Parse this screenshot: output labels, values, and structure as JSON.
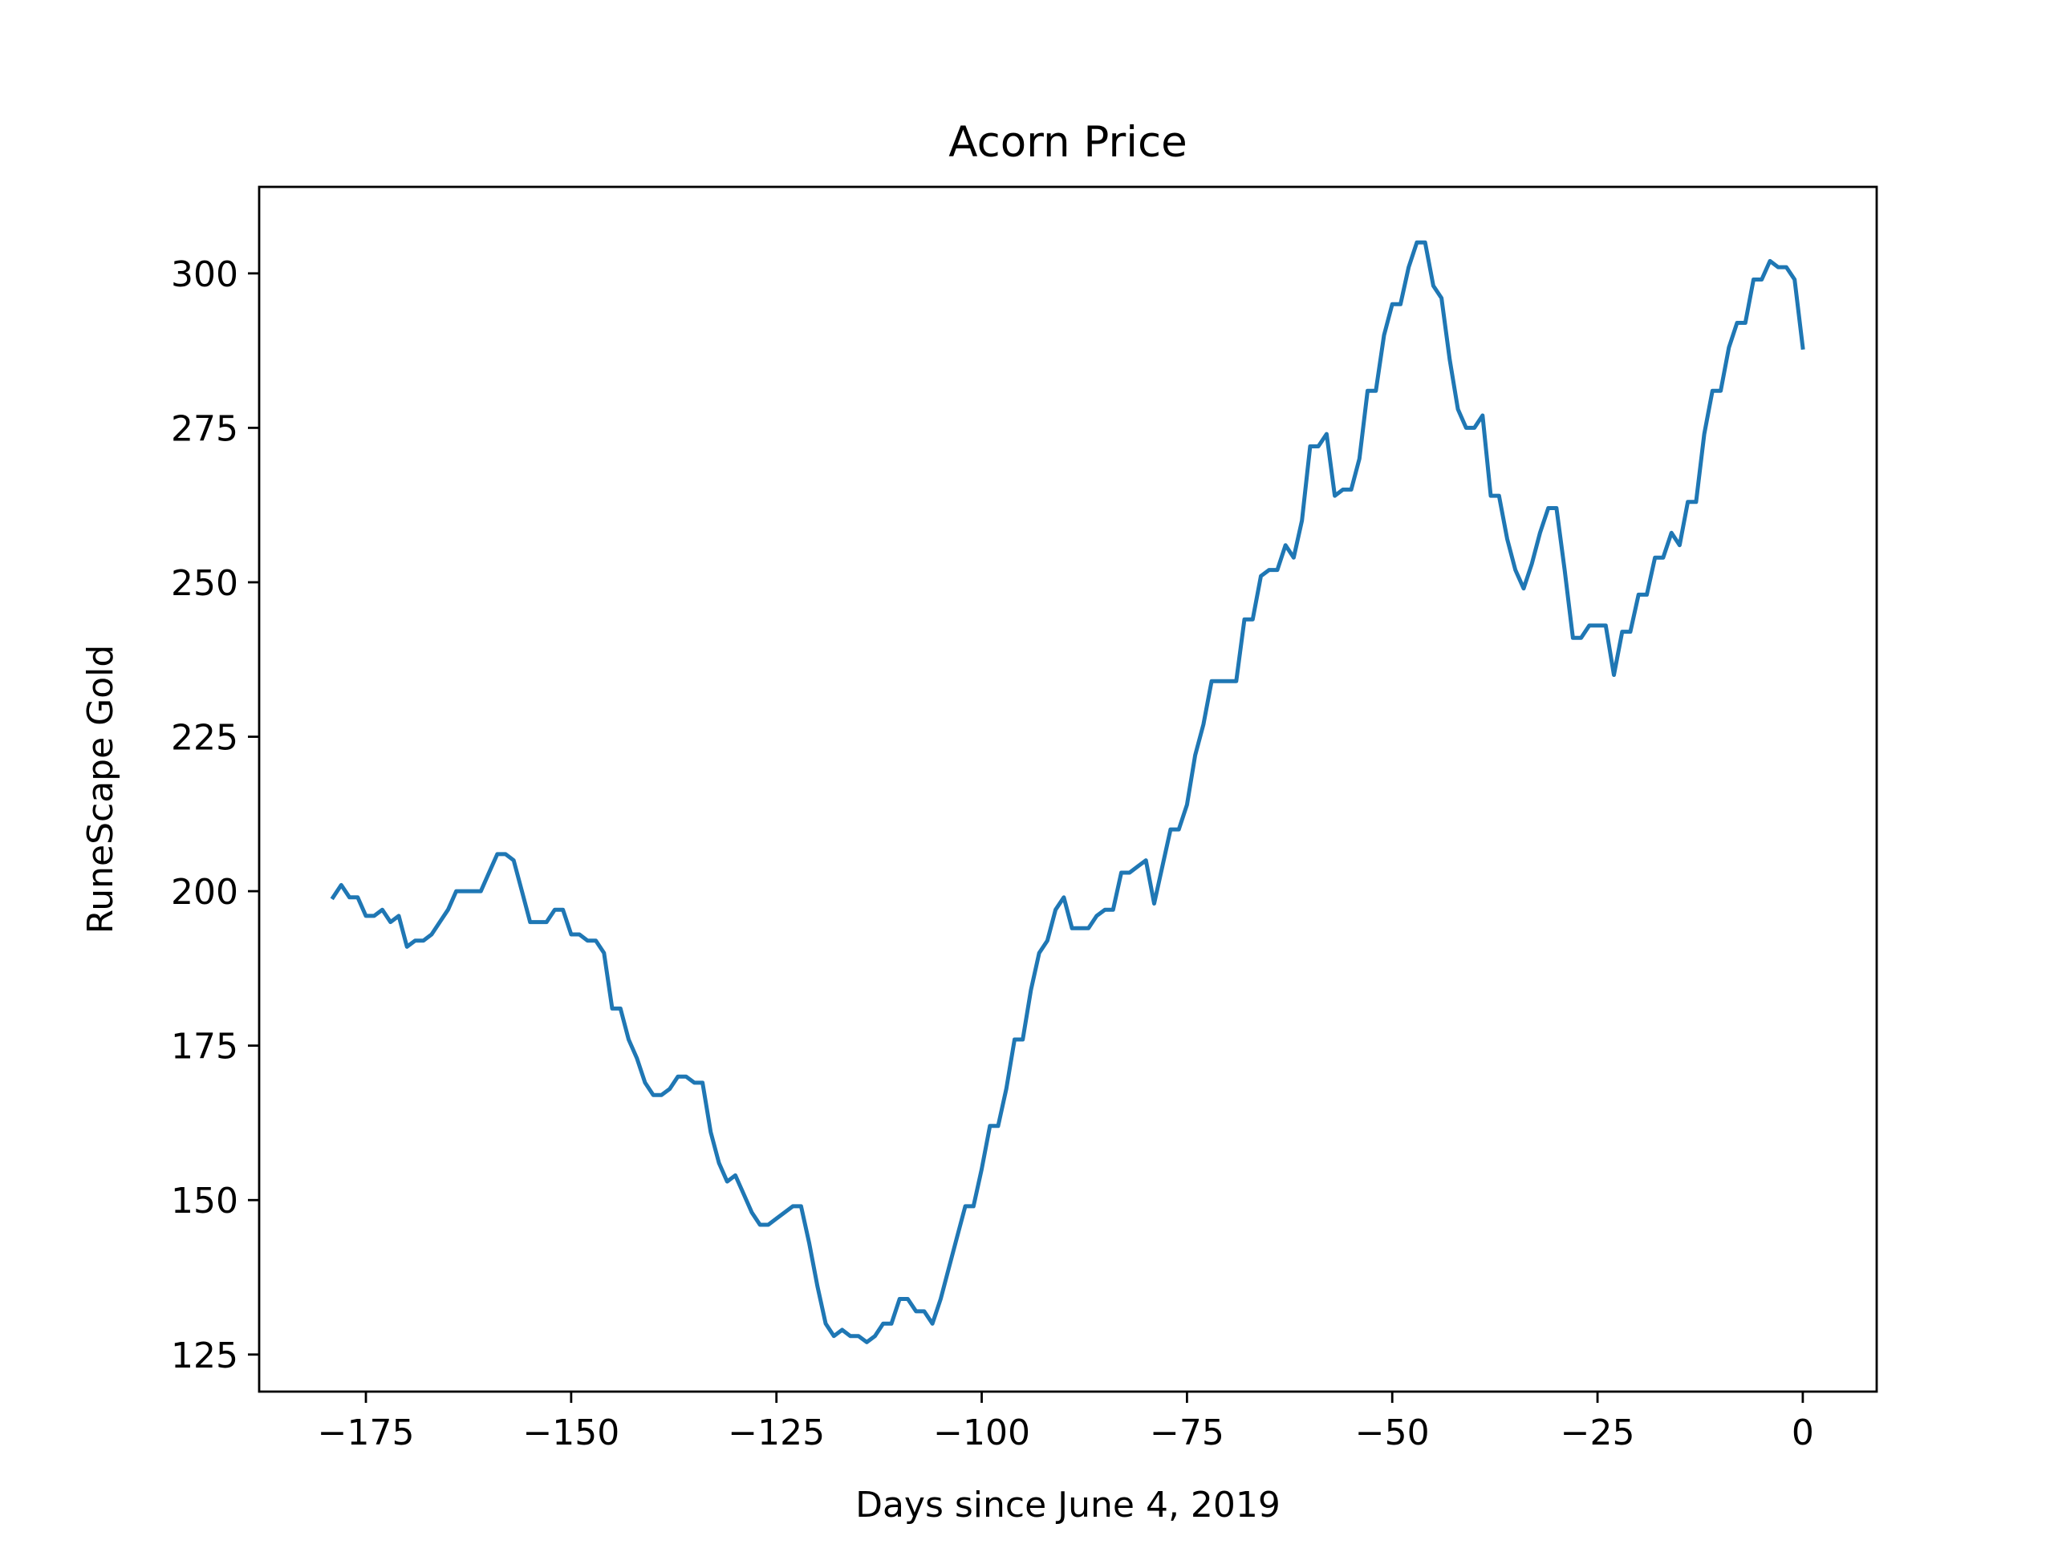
{
  "chart_data": {
    "type": "line",
    "title": "Acorn Price",
    "xlabel": "Days since June 4, 2019",
    "ylabel": "RuneScape Gold",
    "xlim": [
      -188,
      9
    ],
    "ylim": [
      119,
      314
    ],
    "xticks": [
      -175,
      -150,
      -125,
      -100,
      -75,
      -50,
      -25,
      0
    ],
    "xtick_labels": [
      "−175",
      "−150",
      "−125",
      "−100",
      "−75",
      "−50",
      "−25",
      "0"
    ],
    "yticks": [
      125,
      150,
      175,
      200,
      225,
      250,
      275,
      300
    ],
    "ytick_labels": [
      "125",
      "150",
      "175",
      "200",
      "225",
      "250",
      "275",
      "300"
    ],
    "grid": false,
    "legend": false,
    "series": [
      {
        "color": "#1f77b4",
        "x": [
          -179,
          -178,
          -177,
          -176,
          -175,
          -174,
          -173,
          -172,
          -171,
          -170,
          -169,
          -168,
          -167,
          -166,
          -165,
          -164,
          -163,
          -162,
          -161,
          -160,
          -159,
          -158,
          -157,
          -156,
          -155,
          -154,
          -153,
          -152,
          -151,
          -150,
          -149,
          -148,
          -147,
          -146,
          -145,
          -144,
          -143,
          -142,
          -141,
          -140,
          -139,
          -138,
          -137,
          -136,
          -135,
          -134,
          -133,
          -132,
          -131,
          -130,
          -129,
          -128,
          -127,
          -126,
          -125,
          -124,
          -123,
          -122,
          -121,
          -120,
          -119,
          -118,
          -117,
          -116,
          -115,
          -114,
          -113,
          -112,
          -111,
          -110,
          -109,
          -108,
          -107,
          -106,
          -105,
          -104,
          -103,
          -102,
          -101,
          -100,
          -99,
          -98,
          -97,
          -96,
          -95,
          -94,
          -93,
          -92,
          -91,
          -90,
          -89,
          -88,
          -87,
          -86,
          -85,
          -84,
          -83,
          -82,
          -81,
          -80,
          -79,
          -78,
          -77,
          -76,
          -75,
          -74,
          -73,
          -72,
          -71,
          -70,
          -69,
          -68,
          -67,
          -66,
          -65,
          -64,
          -63,
          -62,
          -61,
          -60,
          -59,
          -58,
          -57,
          -56,
          -55,
          -54,
          -53,
          -52,
          -51,
          -50,
          -49,
          -48,
          -47,
          -46,
          -45,
          -44,
          -43,
          -42,
          -41,
          -40,
          -39,
          -38,
          -37,
          -36,
          -35,
          -34,
          -33,
          -32,
          -31,
          -30,
          -29,
          -28,
          -27,
          -26,
          -25,
          -24,
          -23,
          -22,
          -21,
          -20,
          -19,
          -18,
          -17,
          -16,
          -15,
          -14,
          -13,
          -12,
          -11,
          -10,
          -9,
          -8,
          -7,
          -6,
          -5,
          -4,
          -3,
          -2,
          -1,
          0
        ],
        "y": [
          199,
          201,
          199,
          199,
          196,
          196,
          197,
          195,
          196,
          191,
          192,
          192,
          193,
          195,
          197,
          200,
          200,
          200,
          200,
          203,
          206,
          206,
          205,
          200,
          195,
          195,
          195,
          197,
          197,
          193,
          193,
          192,
          192,
          190,
          181,
          181,
          176,
          173,
          169,
          167,
          167,
          168,
          170,
          170,
          169,
          169,
          161,
          156,
          153,
          154,
          151,
          148,
          146,
          146,
          147,
          148,
          149,
          149,
          143,
          136,
          130,
          128,
          129,
          128,
          128,
          127,
          128,
          130,
          130,
          134,
          134,
          132,
          132,
          130,
          134,
          139,
          144,
          149,
          149,
          155,
          162,
          162,
          168,
          176,
          176,
          184,
          190,
          192,
          197,
          199,
          194,
          194,
          194,
          196,
          197,
          197,
          203,
          203,
          204,
          205,
          198,
          204,
          210,
          210,
          214,
          222,
          227,
          234,
          234,
          234,
          234,
          244,
          244,
          251,
          252,
          252,
          256,
          254,
          260,
          272,
          272,
          274,
          264,
          265,
          265,
          270,
          281,
          281,
          290,
          295,
          295,
          301,
          305,
          305,
          298,
          296,
          286,
          278,
          275,
          275,
          277,
          264,
          264,
          257,
          252,
          249,
          253,
          258,
          262,
          262,
          252,
          241,
          241,
          243,
          243,
          243,
          235,
          242,
          242,
          248,
          248,
          254,
          254,
          258,
          256,
          263,
          263,
          274,
          281,
          281,
          288,
          292,
          292,
          299,
          299,
          302,
          301,
          301,
          299,
          288
        ]
      }
    ]
  }
}
